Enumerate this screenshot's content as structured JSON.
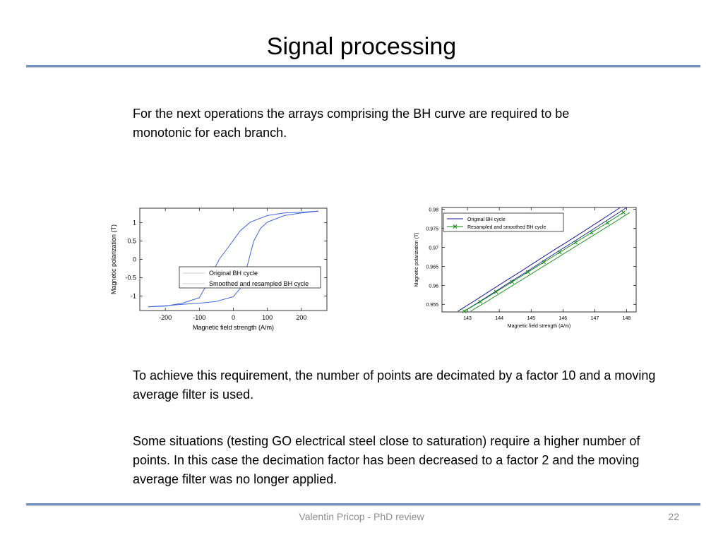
{
  "slide": {
    "title": "Signal processing",
    "paragraph1": "For the next operations the arrays comprising the BH curve are required to be monotonic for each branch.",
    "paragraph2": "To achieve this requirement, the number of points are decimated by a factor 10 and a moving average filter is used.",
    "paragraph3": "Some situations (testing GO electrical steel close to saturation) require a higher number of points. In this case the decimation factor has been decreased to a factor 2 and the moving average filter was no longer applied.",
    "footer": "Valentin Pricop - PhD review",
    "page_number": "22"
  },
  "chart_data": [
    {
      "type": "line",
      "xlabel": "Magnetic field strength (A/m)",
      "ylabel": "Magnetic polarization (T)",
      "xlim": [
        -275,
        275
      ],
      "ylim": [
        -1.4,
        1.4
      ],
      "xticks": [
        -200,
        -100,
        0,
        100,
        200
      ],
      "xtick_labels": [
        "-200",
        "-100",
        "0",
        "100",
        "200"
      ],
      "yticks": [
        1,
        0.5,
        0,
        -0.5,
        -1
      ],
      "ytick_labels": [
        "1",
        "0.5",
        "0",
        "-0.5",
        "-1"
      ],
      "legend": [
        "Original BH cycle",
        "Smoothed and resampled BH cycle"
      ],
      "legend_position": "bottom-right",
      "grid": false,
      "color": "#4466dd",
      "series": [
        {
          "name": "Original BH cycle",
          "x": [
            250,
            200,
            150,
            100,
            50,
            20,
            0,
            -20,
            -40,
            -60,
            -80,
            -100,
            -150,
            -200,
            -250
          ],
          "y": [
            1.32,
            1.29,
            1.27,
            1.2,
            1.02,
            0.78,
            0.52,
            0.27,
            0.02,
            -0.32,
            -0.72,
            -1.05,
            -1.2,
            -1.28,
            -1.3
          ]
        },
        {
          "name": "Smoothed and resampled BH cycle",
          "x": [
            -250,
            -200,
            -150,
            -100,
            -50,
            0,
            20,
            40,
            60,
            80,
            100,
            150,
            200,
            250
          ],
          "y": [
            -1.3,
            -1.27,
            -1.23,
            -1.2,
            -1.15,
            -1.02,
            -0.8,
            -0.2,
            0.5,
            0.85,
            1.02,
            1.2,
            1.27,
            1.32
          ]
        }
      ]
    },
    {
      "type": "line",
      "xlabel": "Magnetic field strength (A/m)",
      "ylabel": "Magnetic polarization (T)",
      "xlim": [
        142.2,
        148.3
      ],
      "ylim": [
        0.953,
        0.9805
      ],
      "xticks": [
        143,
        144,
        145,
        146,
        147,
        148
      ],
      "xtick_labels": [
        "143",
        "144",
        "145",
        "146",
        "147",
        "148"
      ],
      "yticks": [
        0.98,
        0.975,
        0.97,
        0.965,
        0.96,
        0.955
      ],
      "ytick_labels": [
        "0.98",
        "0.975",
        "0.97",
        "0.965",
        "0.96",
        "0.955"
      ],
      "legend": [
        "Original BH cycle",
        "Resampled and smoothed BH cycle"
      ],
      "legend_position": "top-left",
      "grid": false,
      "series": [
        {
          "name": "Original BH cycle",
          "color": "#1a1aa0",
          "x": [
            142.7,
            143.2,
            143.7,
            144.2,
            144.7,
            145.2,
            145.7,
            146.2,
            146.7,
            147.2,
            147.8
          ],
          "y": [
            0.9532,
            0.9558,
            0.9585,
            0.9612,
            0.9638,
            0.9665,
            0.9692,
            0.9718,
            0.9745,
            0.9772,
            0.9805
          ]
        },
        {
          "name": "Resampled and smoothed BH cycle",
          "color": "#0a8a0a",
          "x": [
            142.9,
            143.4,
            143.9,
            144.4,
            144.9,
            145.4,
            145.9,
            146.4,
            146.9,
            147.4,
            147.9
          ],
          "y": [
            0.9532,
            0.9557,
            0.9583,
            0.9609,
            0.9635,
            0.9661,
            0.9687,
            0.9713,
            0.9739,
            0.9765,
            0.9792
          ]
        }
      ]
    }
  ]
}
